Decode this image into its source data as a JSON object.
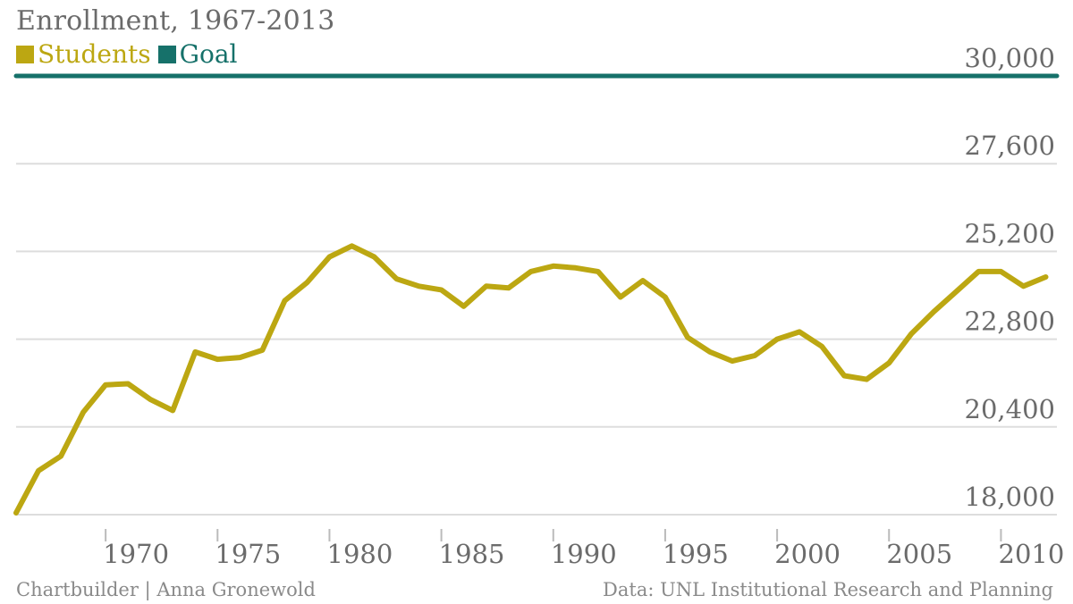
{
  "colors": {
    "students": "#bca712",
    "goal": "#16716a",
    "grid": "#dddddd",
    "axis": "#6b6b6b"
  },
  "title": "Enrollment, 1967-2013",
  "legend": {
    "students": "Students",
    "goal": "Goal"
  },
  "footer": {
    "credit": "Chartbuilder | Anna Gronewold",
    "source": "Data: UNL Institutional Research and Planning"
  },
  "chart_data": {
    "type": "line",
    "title": "Enrollment, 1967-2013",
    "xlabel": "",
    "ylabel": "",
    "ylim": [
      18000,
      30000
    ],
    "xlim": [
      1966,
      2012.5
    ],
    "y_ticks": [
      18000,
      20400,
      22800,
      25200,
      27600,
      30000
    ],
    "y_tick_labels": [
      "18,000",
      "20,400",
      "22,800",
      "25,200",
      "27,600",
      "30,000"
    ],
    "x_ticks": [
      1970,
      1975,
      1980,
      1985,
      1990,
      1995,
      2000,
      2005,
      2010
    ],
    "x_tick_labels": [
      "1970",
      "1975",
      "1980",
      "1985",
      "1990",
      "1995",
      "2000",
      "2005",
      "2010"
    ],
    "grid": true,
    "legend_position": "top-left",
    "series": [
      {
        "name": "Students",
        "x": [
          1966,
          1967,
          1968,
          1969,
          1970,
          1971,
          1972,
          1973,
          1974,
          1975,
          1976,
          1977,
          1978,
          1979,
          1980,
          1981,
          1982,
          1983,
          1984,
          1985,
          1986,
          1987,
          1988,
          1989,
          1990,
          1991,
          1992,
          1993,
          1994,
          1995,
          1996,
          1997,
          1998,
          1999,
          2000,
          2001,
          2002,
          2003,
          2004,
          2005,
          2006,
          2007,
          2008,
          2009,
          2010,
          2011,
          2012
        ],
        "values": [
          18050,
          19200,
          19600,
          20800,
          21550,
          21580,
          21150,
          20850,
          22450,
          22250,
          22300,
          22500,
          23850,
          24350,
          25050,
          25350,
          25050,
          24450,
          24250,
          24150,
          23700,
          24250,
          24200,
          24650,
          24800,
          24750,
          24650,
          23950,
          24400,
          23950,
          22850,
          22450,
          22200,
          22350,
          22800,
          23000,
          22600,
          21800,
          21700,
          22150,
          22950,
          23550,
          24100,
          24650,
          24650,
          24250,
          24500
        ]
      },
      {
        "name": "Goal",
        "x": [
          1966,
          2012.5
        ],
        "values": [
          30000,
          30000
        ]
      }
    ]
  }
}
